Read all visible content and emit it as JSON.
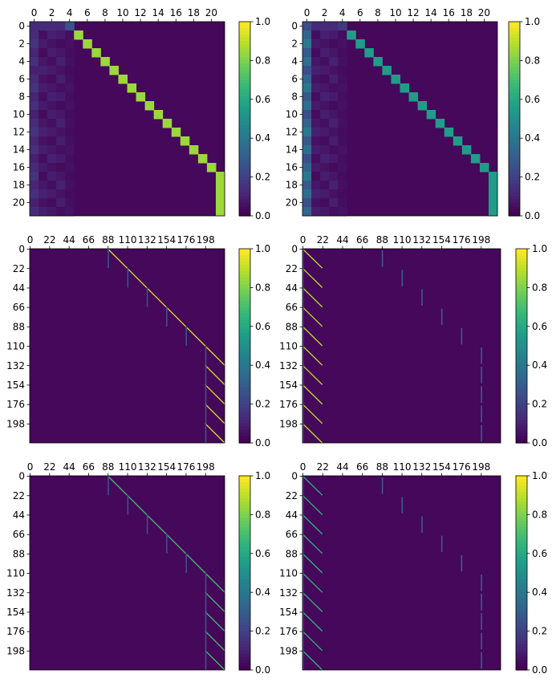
{
  "chart_data": [
    {
      "type": "heatmap",
      "panel": "top-left",
      "size": 22,
      "xticks": [
        "0",
        "2",
        "4",
        "6",
        "8",
        "10",
        "12",
        "14",
        "16",
        "18",
        "20"
      ],
      "yticks": [
        "0",
        "2",
        "4",
        "6",
        "8",
        "10",
        "12",
        "14",
        "16",
        "18",
        "20"
      ],
      "tick_step": 2,
      "colorbar": {
        "range": [
          0.0,
          1.0
        ],
        "ticks": [
          "0.0",
          "0.2",
          "0.4",
          "0.6",
          "0.8",
          "1.0"
        ],
        "colormap": "viridis"
      },
      "pattern": "attention: background ~0.02, first-columns ~0.05-0.15, diagonal offset +4 with value 0.85 (last column rows 17-21 value 0.85)",
      "diag_value": 0.85,
      "first_col_value": 0.15
    },
    {
      "type": "heatmap",
      "panel": "top-right",
      "size": 22,
      "xticks": [
        "0",
        "2",
        "4",
        "6",
        "8",
        "10",
        "12",
        "14",
        "16",
        "18",
        "20"
      ],
      "yticks": [
        "0",
        "2",
        "4",
        "6",
        "8",
        "10",
        "12",
        "14",
        "16",
        "18",
        "20"
      ],
      "tick_step": 2,
      "colorbar": {
        "range": [
          0.0,
          1.0
        ],
        "ticks": [
          "0.0",
          "0.2",
          "0.4",
          "0.6",
          "0.8",
          "1.0"
        ],
        "colormap": "viridis"
      },
      "pattern": "attention: diagonal offset +4 with value 0.55, first column ~0.4",
      "diag_value": 0.55,
      "first_col_value": 0.4
    },
    {
      "type": "heatmap",
      "panel": "middle-left",
      "size": 220,
      "xticks": [
        "0",
        "22",
        "44",
        "66",
        "88",
        "110",
        "132",
        "154",
        "176",
        "198"
      ],
      "yticks": [
        "0",
        "22",
        "44",
        "66",
        "88",
        "110",
        "132",
        "154",
        "176",
        "198"
      ],
      "tick_step": 22,
      "colorbar": {
        "range": [
          0.0,
          1.0
        ],
        "ticks": [
          "0.0",
          "0.2",
          "0.4",
          "0.6",
          "0.8",
          "1.0"
        ],
        "colormap": "viridis"
      },
      "pattern": "block-diagonal: 10 blocks of 22; each block shows a diagonal line at x offset 88+22k (k=0..4) then x 198-220 for blocks 5-9",
      "line_value": 0.95
    },
    {
      "type": "heatmap",
      "panel": "middle-right",
      "size": 220,
      "xticks": [
        "0",
        "22",
        "44",
        "66",
        "88",
        "110",
        "132",
        "154",
        "176",
        "198"
      ],
      "yticks": [
        "0",
        "22",
        "44",
        "66",
        "88",
        "110",
        "132",
        "154",
        "176",
        "198"
      ],
      "tick_step": 22,
      "colorbar": {
        "range": [
          0.0,
          1.0
        ],
        "ticks": [
          "0.0",
          "0.2",
          "0.4",
          "0.6",
          "0.8",
          "1.0"
        ],
        "colormap": "viridis"
      },
      "pattern": "each 22-row block has diagonal line at x 0-22, plus faint vertical stripes at x 88+22k",
      "line_value": 0.9
    },
    {
      "type": "heatmap",
      "panel": "bottom-left",
      "size": 220,
      "xticks": [
        "0",
        "22",
        "44",
        "66",
        "88",
        "110",
        "132",
        "154",
        "176",
        "198"
      ],
      "yticks": [
        "0",
        "22",
        "44",
        "66",
        "88",
        "110",
        "132",
        "154",
        "176",
        "198"
      ],
      "tick_step": 22,
      "colorbar": {
        "range": [
          0.0,
          1.0
        ],
        "ticks": [
          "0.0",
          "0.2",
          "0.4",
          "0.6",
          "0.8",
          "1.0"
        ],
        "colormap": "viridis"
      },
      "pattern": "same as middle-left with weaker intensity",
      "line_value": 0.7
    },
    {
      "type": "heatmap",
      "panel": "bottom-right",
      "size": 220,
      "xticks": [
        "0",
        "22",
        "44",
        "66",
        "88",
        "110",
        "132",
        "154",
        "176",
        "198"
      ],
      "yticks": [
        "0",
        "22",
        "44",
        "66",
        "88",
        "110",
        "132",
        "154",
        "176",
        "198"
      ],
      "tick_step": 22,
      "colorbar": {
        "range": [
          0.0,
          1.0
        ],
        "ticks": [
          "0.0",
          "0.2",
          "0.4",
          "0.6",
          "0.8",
          "1.0"
        ],
        "colormap": "viridis"
      },
      "pattern": "same as middle-right with weaker intensity",
      "line_value": 0.65
    }
  ]
}
